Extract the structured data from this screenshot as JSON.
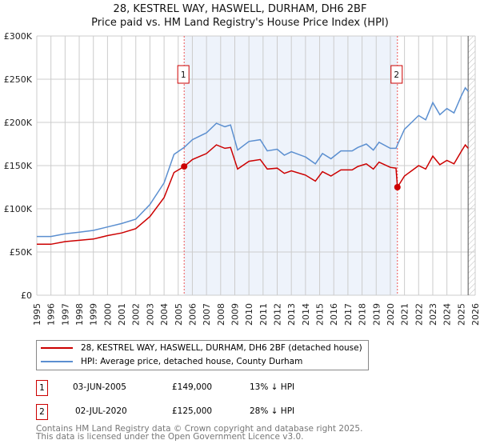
{
  "chart_data": {
    "type": "line",
    "title": "28, KESTREL WAY, HASWELL, DURHAM, DH6 2BF",
    "subtitle": "Price paid vs. HM Land Registry's House Price Index (HPI)",
    "xlim": [
      1995,
      2026
    ],
    "ylim": [
      0,
      300000
    ],
    "y_ticks": [
      {
        "v": 0,
        "label": "£0"
      },
      {
        "v": 50000,
        "label": "£50K"
      },
      {
        "v": 100000,
        "label": "£100K"
      },
      {
        "v": 150000,
        "label": "£150K"
      },
      {
        "v": 200000,
        "label": "£200K"
      },
      {
        "v": 250000,
        "label": "£250K"
      },
      {
        "v": 300000,
        "label": "£300K"
      }
    ],
    "x_ticks": [
      "1995",
      "1996",
      "1997",
      "1998",
      "1999",
      "2000",
      "2001",
      "2002",
      "2003",
      "2004",
      "2005",
      "2006",
      "2007",
      "2008",
      "2009",
      "2010",
      "2011",
      "2012",
      "2013",
      "2014",
      "2015",
      "2016",
      "2017",
      "2018",
      "2019",
      "2020",
      "2021",
      "2022",
      "2023",
      "2024",
      "2025",
      "2026"
    ],
    "grid": true,
    "colors": {
      "price": "#cc0000",
      "hpi": "#5b8fd0",
      "shade": "#eef3fb"
    },
    "series": [
      {
        "name": "28, KESTREL WAY, HASWELL, DURHAM, DH6 2BF (detached house)",
        "key": "price",
        "x": [
          1995,
          1996,
          1997,
          1998,
          1999,
          2000,
          2001,
          2002,
          2003,
          2004,
          2004.7,
          2005.42,
          2006,
          2007,
          2007.7,
          2008.3,
          2008.7,
          2009.2,
          2010,
          2010.8,
          2011.3,
          2012,
          2012.5,
          2013,
          2014,
          2014.7,
          2015.2,
          2015.8,
          2016.5,
          2017.3,
          2017.7,
          2018.3,
          2018.8,
          2019.2,
          2020,
          2020.4,
          2020.5,
          2021,
          2021.5,
          2022,
          2022.5,
          2023,
          2023.5,
          2024,
          2024.5,
          2025,
          2025.3,
          2025.5
        ],
        "y": [
          59000,
          59000,
          62000,
          63500,
          65000,
          69000,
          72000,
          77000,
          91000,
          113000,
          142000,
          149000,
          157000,
          164000,
          174000,
          170000,
          171000,
          146000,
          155000,
          157000,
          146000,
          147000,
          141000,
          144000,
          139000,
          132000,
          143000,
          138000,
          145000,
          145000,
          149000,
          152000,
          146000,
          154000,
          148000,
          147000,
          125000,
          138000,
          144000,
          150000,
          146000,
          161000,
          151000,
          156000,
          152000,
          166000,
          174000,
          170000
        ]
      },
      {
        "name": "HPI: Average price, detached house, County Durham",
        "key": "hpi",
        "x": [
          1995,
          1996,
          1997,
          1998,
          1999,
          2000,
          2001,
          2002,
          2003,
          2004,
          2004.7,
          2005.42,
          2006,
          2007,
          2007.7,
          2008.3,
          2008.7,
          2009.2,
          2010,
          2010.8,
          2011.3,
          2012,
          2012.5,
          2013,
          2014,
          2014.7,
          2015.2,
          2015.8,
          2016.5,
          2017.3,
          2017.7,
          2018.3,
          2018.8,
          2019.2,
          2020,
          2020.4,
          2020.5,
          2021,
          2021.5,
          2022,
          2022.5,
          2023,
          2023.5,
          2024,
          2024.5,
          2025,
          2025.3,
          2025.5
        ],
        "y": [
          68000,
          68000,
          71000,
          73000,
          75000,
          79000,
          83000,
          88000,
          105000,
          130000,
          163000,
          171000,
          180000,
          188000,
          199000,
          195000,
          197000,
          168000,
          178000,
          180000,
          167000,
          169000,
          162000,
          166000,
          160000,
          152000,
          164000,
          158000,
          167000,
          167000,
          171000,
          175000,
          168000,
          177000,
          170000,
          170000,
          174000,
          192000,
          200000,
          208000,
          203000,
          223000,
          209000,
          216000,
          211000,
          230000,
          240000,
          236000
        ]
      }
    ],
    "sales": [
      {
        "id": "1",
        "x": 2005.42,
        "y": 149000
      },
      {
        "id": "2",
        "x": 2020.5,
        "y": 125000
      }
    ]
  },
  "legend": {
    "price": "28, KESTREL WAY, HASWELL, DURHAM, DH6 2BF (detached house)",
    "hpi": "HPI: Average price, detached house, County Durham"
  },
  "transactions": [
    {
      "id": "1",
      "date": "03-JUN-2005",
      "price": "£149,000",
      "hpi": "13% ↓ HPI"
    },
    {
      "id": "2",
      "date": "02-JUL-2020",
      "price": "£125,000",
      "hpi": "28% ↓ HPI"
    }
  ],
  "footer": [
    "Contains HM Land Registry data © Crown copyright and database right 2025.",
    "This data is licensed under the Open Government Licence v3.0."
  ]
}
